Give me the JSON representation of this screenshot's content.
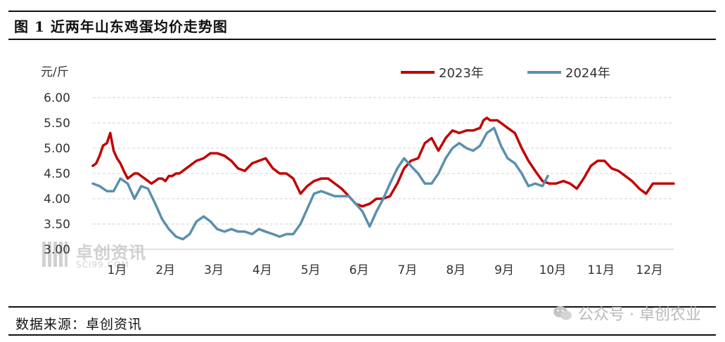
{
  "header": {
    "title": "图 1 近两年山东鸡蛋均价走势图"
  },
  "footer": {
    "source": "数据来源：卓创资讯",
    "watermark": "公众号 · 卓创农业"
  },
  "logo": {
    "name": "卓创资讯",
    "url": "SCI99.COM"
  },
  "chart_data": {
    "type": "line",
    "title": "图 1 近两年山东鸡蛋均价走势图",
    "ylabel": "元/斤",
    "xlabel": "",
    "ylim": [
      3.0,
      6.0
    ],
    "yticks": [
      "3.00",
      "3.50",
      "4.00",
      "4.50",
      "5.00",
      "5.50",
      "6.00"
    ],
    "x_unit": "month (1.0 = start of 1月)",
    "xlim": [
      1.0,
      13.0
    ],
    "categories": [
      "1月",
      "2月",
      "3月",
      "4月",
      "5月",
      "6月",
      "7月",
      "8月",
      "9月",
      "10月",
      "11月",
      "12月"
    ],
    "grid": true,
    "legend_position": "top",
    "series": [
      {
        "name": "2023年",
        "color": "#c00000",
        "x": [
          1.0,
          1.07,
          1.14,
          1.21,
          1.29,
          1.36,
          1.43,
          1.5,
          1.57,
          1.64,
          1.72,
          1.79,
          1.86,
          1.93,
          2.0,
          2.07,
          2.14,
          2.21,
          2.29,
          2.36,
          2.43,
          2.5,
          2.57,
          2.64,
          2.72,
          2.79,
          2.86,
          2.93,
          3.0,
          3.14,
          3.29,
          3.43,
          3.57,
          3.72,
          3.86,
          4.0,
          4.14,
          4.29,
          4.43,
          4.57,
          4.72,
          4.86,
          5.0,
          5.14,
          5.29,
          5.43,
          5.57,
          5.72,
          5.86,
          6.0,
          6.14,
          6.29,
          6.43,
          6.57,
          6.72,
          6.86,
          7.0,
          7.14,
          7.29,
          7.43,
          7.57,
          7.72,
          7.86,
          8.0,
          8.14,
          8.29,
          8.43,
          8.57,
          8.72,
          8.86,
          9.0,
          9.07,
          9.14,
          9.21,
          9.29,
          9.36,
          9.43,
          9.57,
          9.72,
          9.86,
          10.0,
          10.14,
          10.29,
          10.43,
          10.57,
          10.72,
          10.86,
          11.0,
          11.14,
          11.29,
          11.43,
          11.57,
          11.72,
          11.86,
          12.0,
          12.14,
          12.29,
          12.43,
          12.57,
          12.72,
          12.86,
          13.0
        ],
        "values": [
          4.65,
          4.7,
          4.85,
          5.05,
          5.1,
          5.3,
          4.95,
          4.8,
          4.7,
          4.55,
          4.4,
          4.45,
          4.5,
          4.5,
          4.45,
          4.4,
          4.35,
          4.3,
          4.35,
          4.4,
          4.4,
          4.35,
          4.45,
          4.45,
          4.5,
          4.5,
          4.55,
          4.6,
          4.65,
          4.75,
          4.8,
          4.9,
          4.9,
          4.85,
          4.75,
          4.6,
          4.55,
          4.7,
          4.75,
          4.8,
          4.6,
          4.5,
          4.5,
          4.4,
          4.1,
          4.25,
          4.35,
          4.4,
          4.4,
          4.3,
          4.2,
          4.05,
          3.9,
          3.85,
          3.9,
          4.0,
          4.0,
          4.05,
          4.3,
          4.6,
          4.75,
          4.8,
          5.1,
          5.2,
          4.95,
          5.2,
          5.35,
          5.3,
          5.35,
          5.35,
          5.4,
          5.55,
          5.6,
          5.55,
          5.55,
          5.55,
          5.5,
          5.4,
          5.3,
          5.0,
          4.75,
          4.55,
          4.35,
          4.3,
          4.3,
          4.35,
          4.3,
          4.2,
          4.4,
          4.65,
          4.75,
          4.75,
          4.6,
          4.55,
          4.45,
          4.35,
          4.2,
          4.1,
          4.3,
          4.3,
          4.3,
          4.3
        ]
      },
      {
        "name": "2024年",
        "color": "#5b8fad",
        "x": [
          1.0,
          1.14,
          1.29,
          1.43,
          1.57,
          1.72,
          1.86,
          2.0,
          2.14,
          2.29,
          2.43,
          2.57,
          2.72,
          2.86,
          3.0,
          3.14,
          3.29,
          3.43,
          3.57,
          3.72,
          3.86,
          4.0,
          4.14,
          4.29,
          4.43,
          4.57,
          4.72,
          4.86,
          5.0,
          5.14,
          5.29,
          5.43,
          5.57,
          5.72,
          5.86,
          6.0,
          6.14,
          6.29,
          6.43,
          6.57,
          6.72,
          6.86,
          7.0,
          7.14,
          7.29,
          7.43,
          7.57,
          7.72,
          7.86,
          8.0,
          8.14,
          8.29,
          8.43,
          8.57,
          8.72,
          8.86,
          9.0,
          9.14,
          9.29,
          9.43,
          9.57,
          9.72,
          9.86,
          10.0,
          10.14,
          10.29,
          10.4
        ],
        "values": [
          4.3,
          4.25,
          4.15,
          4.15,
          4.4,
          4.3,
          4.0,
          4.25,
          4.2,
          3.9,
          3.6,
          3.4,
          3.25,
          3.2,
          3.3,
          3.55,
          3.65,
          3.55,
          3.4,
          3.35,
          3.4,
          3.35,
          3.35,
          3.3,
          3.4,
          3.35,
          3.3,
          3.25,
          3.3,
          3.3,
          3.5,
          3.8,
          4.1,
          4.15,
          4.1,
          4.05,
          4.05,
          4.05,
          3.9,
          3.75,
          3.45,
          3.75,
          4.0,
          4.3,
          4.6,
          4.8,
          4.65,
          4.5,
          4.3,
          4.3,
          4.5,
          4.8,
          5.0,
          5.1,
          5.0,
          4.95,
          5.05,
          5.3,
          5.4,
          5.05,
          4.8,
          4.7,
          4.5,
          4.25,
          4.3,
          4.25,
          4.45
        ]
      }
    ]
  }
}
